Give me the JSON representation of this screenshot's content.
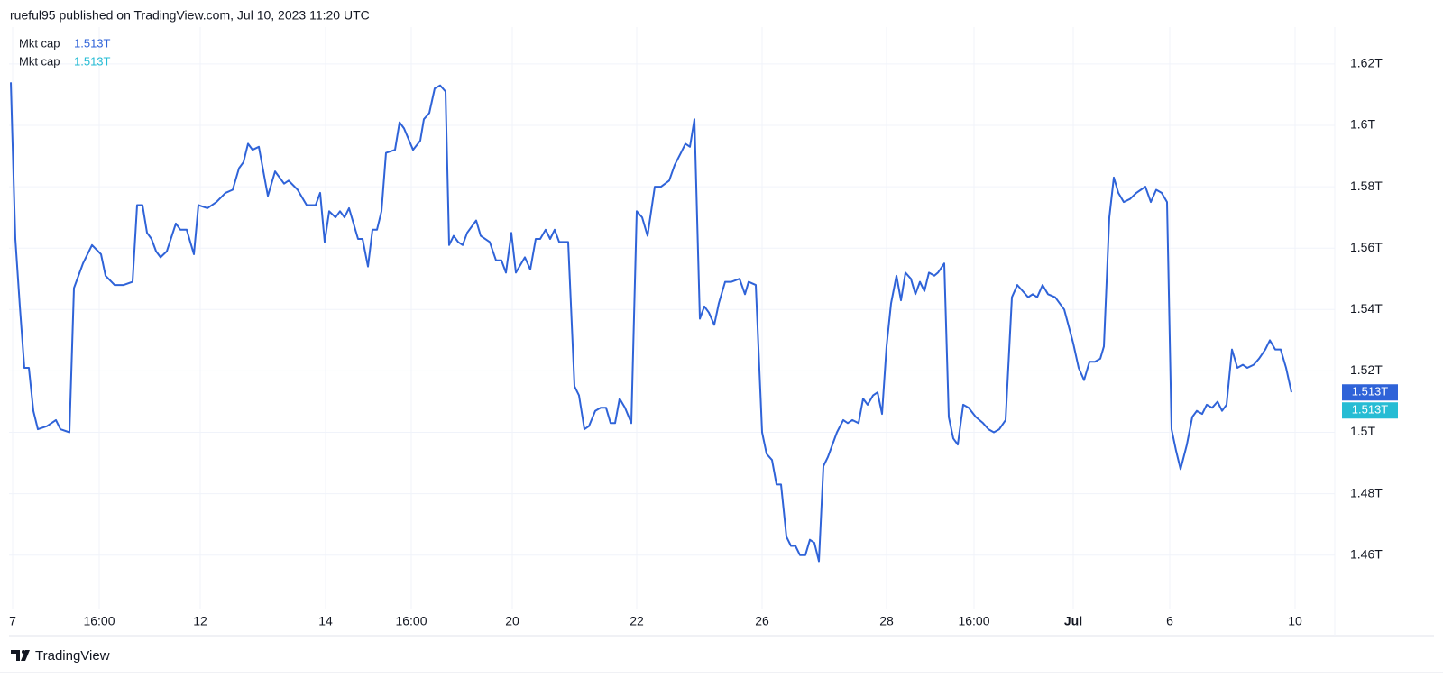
{
  "header": {
    "text": "rueful95 published on TradingView.com, Jul 10, 2023 11:20 UTC"
  },
  "footer": {
    "brand": "TradingView"
  },
  "chart_data": {
    "type": "line",
    "x": [
      12,
      17,
      22,
      27,
      32,
      37,
      42,
      52,
      62,
      67,
      77,
      82,
      92,
      102,
      112,
      117,
      127,
      137,
      147,
      152,
      158,
      163,
      168,
      173,
      178,
      185,
      195,
      200,
      207,
      215,
      220,
      230,
      240,
      250,
      258,
      265,
      270,
      275,
      280,
      287,
      297,
      305,
      315,
      320,
      330,
      340,
      350,
      355,
      360,
      365,
      372,
      377,
      382,
      387,
      392,
      397,
      402,
      408,
      413,
      418,
      423,
      428,
      438,
      443,
      448,
      458,
      466,
      470,
      476,
      482,
      488,
      494,
      498,
      503,
      508,
      513,
      518,
      528,
      533,
      543,
      550,
      556,
      561,
      567,
      572,
      582,
      588,
      594,
      599,
      605,
      610,
      615,
      620,
      630,
      637,
      642,
      648,
      653,
      660,
      666,
      672,
      677,
      682,
      687,
      693,
      700,
      706,
      712,
      718,
      726,
      733,
      742,
      748,
      755,
      760,
      765,
      770,
      776,
      781,
      786,
      792,
      797,
      804,
      811,
      820,
      826,
      830,
      838,
      845,
      850,
      856,
      861,
      866,
      872,
      877,
      882,
      887,
      893,
      898,
      903,
      908,
      913,
      918,
      923,
      928,
      935,
      940,
      945,
      952,
      957,
      962,
      968,
      973,
      978,
      983,
      988,
      994,
      999,
      1004,
      1010,
      1015,
      1020,
      1025,
      1030,
      1036,
      1040,
      1047,
      1052,
      1057,
      1062,
      1068,
      1074,
      1082,
      1090,
      1096,
      1102,
      1108,
      1115,
      1122,
      1128,
      1134,
      1140,
      1145,
      1150,
      1156,
      1162,
      1170,
      1180,
      1190,
      1196,
      1202,
      1208,
      1214,
      1220,
      1224,
      1230,
      1235,
      1240,
      1246,
      1253,
      1260,
      1265,
      1270,
      1276,
      1282,
      1288,
      1294,
      1299,
      1304,
      1309,
      1316,
      1322,
      1327,
      1333,
      1338,
      1344,
      1350,
      1355,
      1360,
      1366,
      1372,
      1378,
      1383,
      1390,
      1396,
      1403,
      1408,
      1414,
      1420,
      1426,
      1432
    ],
    "series": [
      {
        "name": "Mkt cap",
        "color": "#2f63d8",
        "last_value": 1.513,
        "last_label": "1.513T",
        "values": [
          1.614,
          1.563,
          1.541,
          1.521,
          1.521,
          1.507,
          1.501,
          1.502,
          1.504,
          1.501,
          1.5,
          1.547,
          1.555,
          1.561,
          1.558,
          1.551,
          1.548,
          1.548,
          1.549,
          1.574,
          1.574,
          1.565,
          1.563,
          1.559,
          1.557,
          1.559,
          1.568,
          1.566,
          1.566,
          1.558,
          1.574,
          1.573,
          1.575,
          1.578,
          1.579,
          1.586,
          1.588,
          1.594,
          1.592,
          1.593,
          1.577,
          1.585,
          1.581,
          1.582,
          1.579,
          1.574,
          1.574,
          1.578,
          1.562,
          1.572,
          1.57,
          1.572,
          1.57,
          1.573,
          1.568,
          1.563,
          1.563,
          1.554,
          1.566,
          1.566,
          1.572,
          1.591,
          1.592,
          1.601,
          1.599,
          1.592,
          1.595,
          1.602,
          1.604,
          1.612,
          1.613,
          1.611,
          1.561,
          1.564,
          1.562,
          1.561,
          1.565,
          1.569,
          1.564,
          1.562,
          1.556,
          1.556,
          1.552,
          1.565,
          1.552,
          1.557,
          1.553,
          1.563,
          1.563,
          1.566,
          1.563,
          1.566,
          1.562,
          1.562,
          1.515,
          1.512,
          1.501,
          1.502,
          1.507,
          1.508,
          1.508,
          1.503,
          1.503,
          1.511,
          1.508,
          1.503,
          1.572,
          1.57,
          1.564,
          1.58,
          1.58,
          1.582,
          1.587,
          1.591,
          1.594,
          1.593,
          1.602,
          1.537,
          1.541,
          1.539,
          1.535,
          1.542,
          1.549,
          1.549,
          1.55,
          1.545,
          1.549,
          1.548,
          1.5,
          1.493,
          1.491,
          1.483,
          1.483,
          1.466,
          1.463,
          1.463,
          1.46,
          1.46,
          1.465,
          1.464,
          1.458,
          1.489,
          1.492,
          1.496,
          1.5,
          1.504,
          1.503,
          1.504,
          1.503,
          1.511,
          1.509,
          1.512,
          1.513,
          1.506,
          1.528,
          1.542,
          1.551,
          1.543,
          1.552,
          1.55,
          1.545,
          1.549,
          1.546,
          1.552,
          1.551,
          1.552,
          1.555,
          1.505,
          1.498,
          1.496,
          1.509,
          1.508,
          1.505,
          1.503,
          1.501,
          1.5,
          1.501,
          1.504,
          1.544,
          1.548,
          1.546,
          1.544,
          1.545,
          1.544,
          1.548,
          1.545,
          1.544,
          1.54,
          1.529,
          1.521,
          1.517,
          1.523,
          1.523,
          1.524,
          1.528,
          1.57,
          1.583,
          1.578,
          1.575,
          1.576,
          1.578,
          1.579,
          1.58,
          1.575,
          1.579,
          1.578,
          1.575,
          1.501,
          1.494,
          1.488,
          1.496,
          1.505,
          1.507,
          1.506,
          1.509,
          1.508,
          1.51,
          1.507,
          1.509,
          1.527,
          1.521,
          1.522,
          1.521,
          1.522,
          1.524,
          1.527,
          1.53,
          1.527,
          1.527,
          1.521,
          1.513
        ]
      },
      {
        "name": "Mkt cap",
        "color": "#26bcd4",
        "last_value": 1.513,
        "last_label": "1.513T"
      }
    ],
    "xlim": [
      10,
      1480
    ],
    "xticks": [
      {
        "value": 14,
        "label": "7"
      },
      {
        "value": 110,
        "label": "16:00"
      },
      {
        "value": 222,
        "label": "12"
      },
      {
        "value": 361,
        "label": "14"
      },
      {
        "value": 456,
        "label": "16:00"
      },
      {
        "value": 568,
        "label": "20"
      },
      {
        "value": 706,
        "label": "22"
      },
      {
        "value": 845,
        "label": "26"
      },
      {
        "value": 983,
        "label": "28"
      },
      {
        "value": 1080,
        "label": "16:00"
      },
      {
        "value": 1190,
        "label": "Jul"
      },
      {
        "value": 1297,
        "label": "6"
      },
      {
        "value": 1436,
        "label": "10"
      }
    ],
    "ylim": [
      1.447,
      1.632
    ],
    "yticks": [
      {
        "value": 1.46,
        "label": "1.46T"
      },
      {
        "value": 1.48,
        "label": "1.48T"
      },
      {
        "value": 1.5,
        "label": "1.5T"
      },
      {
        "value": 1.52,
        "label": "1.52T"
      },
      {
        "value": 1.54,
        "label": "1.54T"
      },
      {
        "value": 1.56,
        "label": "1.56T"
      },
      {
        "value": 1.58,
        "label": "1.58T"
      },
      {
        "value": 1.6,
        "label": "1.6T"
      },
      {
        "value": 1.62,
        "label": "1.62T"
      }
    ],
    "grid": true
  }
}
